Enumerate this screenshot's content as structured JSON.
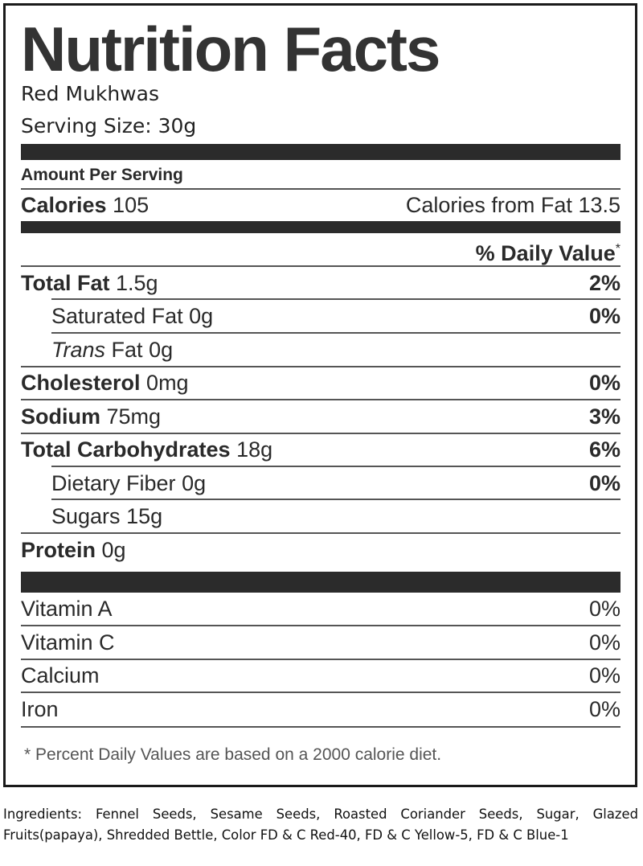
{
  "title": "Nutrition Facts",
  "product_name": "Red Mukhwas",
  "serving_size": "Serving Size: 30g",
  "amount_per_serving": "Amount Per Serving",
  "calories": {
    "label": "Calories",
    "value": "105",
    "from_fat_label": "Calories from Fat",
    "from_fat_value": "13.5"
  },
  "daily_value_header": "% Daily Value",
  "daily_value_mark": "*",
  "nutrients": {
    "total_fat": {
      "label": "Total Fat",
      "amount": "1.5g",
      "dv": "2%"
    },
    "saturated_fat": {
      "label": "Saturated Fat",
      "amount": "0g",
      "dv": "0%"
    },
    "trans_fat": {
      "label_italic": "Trans",
      "label": "Fat",
      "amount": "0g"
    },
    "cholesterol": {
      "label": "Cholesterol",
      "amount": "0mg",
      "dv": "0%"
    },
    "sodium": {
      "label": "Sodium",
      "amount": "75mg",
      "dv": "3%"
    },
    "total_carbs": {
      "label": "Total Carbohydrates",
      "amount": "18g",
      "dv": "6%"
    },
    "dietary_fiber": {
      "label": "Dietary Fiber",
      "amount": "0g",
      "dv": "0%"
    },
    "sugars": {
      "label": "Sugars",
      "amount": "15g"
    },
    "protein": {
      "label": "Protein",
      "amount": "0g"
    }
  },
  "vitamins": [
    {
      "label": "Vitamin A",
      "dv": "0%"
    },
    {
      "label": "Vitamin C",
      "dv": "0%"
    },
    {
      "label": "Calcium",
      "dv": "0%"
    },
    {
      "label": "Iron",
      "dv": "0%"
    }
  ],
  "footnote": "* Percent Daily Values are based on a 2000 calorie diet.",
  "ingredients": "Ingredients: Fennel Seeds, Sesame Seeds, Roasted Coriander Seeds, Sugar, Glazed Fruits(papaya), Shredded Bettle, Color FD & C Red-40, FD & C Yellow-5, FD & C Blue-1"
}
